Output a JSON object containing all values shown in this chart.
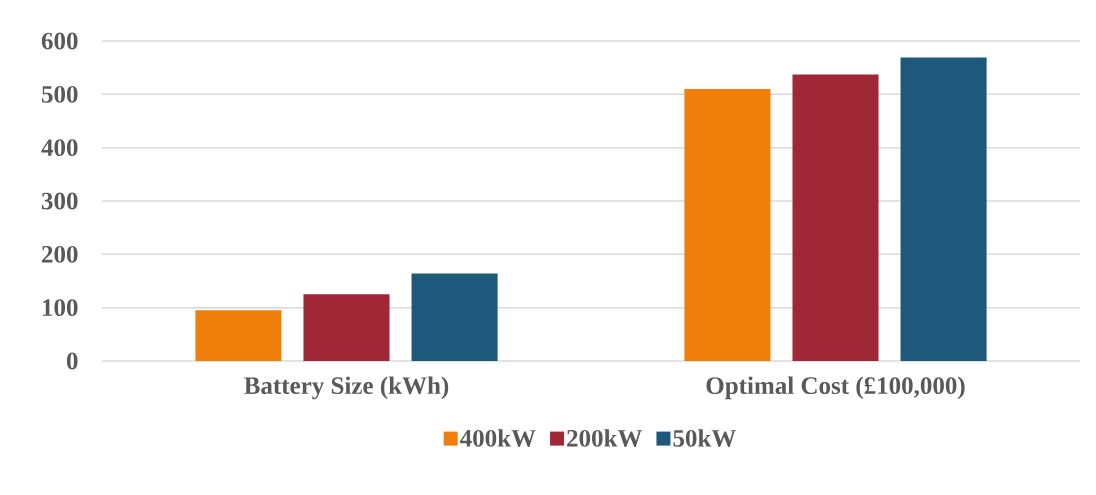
{
  "chart_data": {
    "type": "bar",
    "categories": [
      "Battery Size (kWh)",
      "Optimal Cost (£100,000)"
    ],
    "series": [
      {
        "name": "400kW",
        "color": "#ef7f0a",
        "values": [
          95,
          510
        ]
      },
      {
        "name": "200kW",
        "color": "#a02736",
        "values": [
          125,
          537
        ]
      },
      {
        "name": "50kW",
        "color": "#1e587a",
        "values": [
          164,
          569
        ]
      }
    ],
    "ylim": [
      0,
      600
    ],
    "yticks": [
      0,
      100,
      200,
      300,
      400,
      500,
      600
    ],
    "grid": "y",
    "legend": "bottom"
  }
}
